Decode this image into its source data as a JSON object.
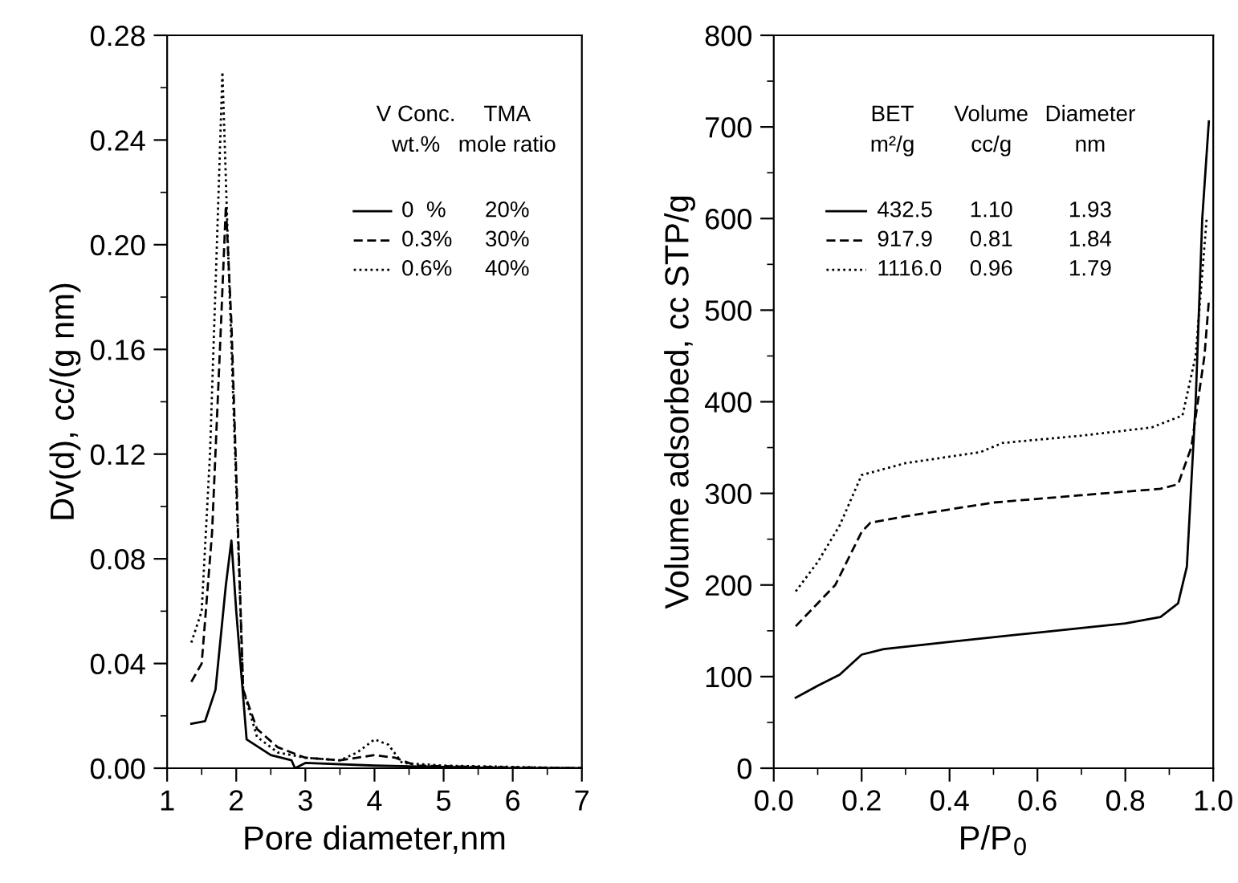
{
  "chart_data": [
    {
      "type": "line",
      "xlabel": "Pore diameter,nm",
      "ylabel": "Dv(d), cc/(g nm)",
      "xlim": [
        1,
        7
      ],
      "xticks": [
        1,
        2,
        3,
        4,
        5,
        6,
        7
      ],
      "ylim": [
        0,
        0.28
      ],
      "yticks": [
        {
          "value": 0,
          "label": "0.00"
        },
        0.04,
        0.08,
        0.12,
        0.16,
        {
          "value": 0.2,
          "label": "0.20"
        },
        0.24,
        0.28
      ],
      "grid": false,
      "legend": "top right",
      "annotations": [
        "V Conc.\nwt.%",
        "TMA\nmole ratio",
        "20%",
        "30%",
        "40%"
      ],
      "series": [
        {
          "name": "0  %",
          "color": "#000000",
          "line_style": "solid",
          "x": [
            1.35,
            1.55,
            1.7,
            1.85,
            1.93,
            2.0,
            2.15,
            2.5,
            2.8,
            2.85,
            3.0,
            4.0,
            5.0,
            6.0,
            7.0
          ],
          "values": [
            0.017,
            0.018,
            0.03,
            0.07,
            0.087,
            0.06,
            0.011,
            0.005,
            0.003,
            0.0,
            0.002,
            0.001,
            0.0005,
            0.0,
            0.0
          ]
        },
        {
          "name": "0.3%",
          "color": "#000000",
          "line_style": "dashed",
          "x": [
            1.35,
            1.5,
            1.65,
            1.78,
            1.85,
            1.93,
            2.1,
            2.3,
            2.6,
            3.0,
            3.5,
            4.0,
            4.3,
            4.6,
            5.5,
            7.0
          ],
          "values": [
            0.033,
            0.04,
            0.09,
            0.17,
            0.215,
            0.17,
            0.03,
            0.015,
            0.008,
            0.004,
            0.003,
            0.005,
            0.004,
            0.001,
            0.0005,
            0.0
          ]
        },
        {
          "name": "0.6%",
          "color": "#000000",
          "line_style": "dotted",
          "x": [
            1.35,
            1.5,
            1.62,
            1.72,
            1.8,
            1.88,
            2.1,
            2.3,
            2.6,
            3.0,
            3.5,
            3.75,
            4.0,
            4.2,
            4.4,
            5.0,
            6.0,
            7.0
          ],
          "values": [
            0.048,
            0.06,
            0.12,
            0.2,
            0.266,
            0.2,
            0.03,
            0.012,
            0.006,
            0.004,
            0.003,
            0.006,
            0.011,
            0.009,
            0.002,
            0.001,
            0.0005,
            0.0
          ]
        }
      ]
    },
    {
      "type": "line",
      "xlabel": "P/P$_{0}$",
      "ylabel": "Volume adsorbed, cc STP/g",
      "xlim": [
        0,
        1
      ],
      "xticks": [
        {
          "value": 0,
          "label": "0.0"
        },
        0.2,
        0.4,
        0.6,
        0.8,
        {
          "value": 1,
          "label": "1.0"
        }
      ],
      "ylim": [
        0,
        800
      ],
      "yticks": [
        0,
        100,
        200,
        300,
        400,
        500,
        600,
        700,
        800
      ],
      "grid": false,
      "legend": "top",
      "annotations": [
        "BET\nm²/g",
        "Volume\ncc/g",
        "Diameter\nnm",
        "1.10",
        "1.93",
        "0.81",
        "1.84",
        "0.96",
        "1.79"
      ],
      "series": [
        {
          "name": "432.5",
          "color": "#000000",
          "line_style": "solid",
          "x": [
            0.05,
            0.1,
            0.15,
            0.2,
            0.25,
            0.4,
            0.6,
            0.8,
            0.88,
            0.92,
            0.94,
            0.96,
            0.975,
            0.99
          ],
          "values": [
            77,
            90,
            102,
            124,
            130,
            138,
            148,
            158,
            165,
            180,
            220,
            400,
            600,
            706
          ]
        },
        {
          "name": "917.9",
          "color": "#000000",
          "line_style": "dashed",
          "x": [
            0.05,
            0.14,
            0.2,
            0.22,
            0.3,
            0.5,
            0.7,
            0.88,
            0.92,
            0.95,
            0.98,
            0.99
          ],
          "values": [
            155,
            200,
            258,
            268,
            275,
            290,
            298,
            305,
            310,
            350,
            450,
            510
          ]
        },
        {
          "name": "1116.0",
          "color": "#000000",
          "line_style": "dotted",
          "x": [
            0.05,
            0.1,
            0.15,
            0.2,
            0.3,
            0.47,
            0.52,
            0.7,
            0.86,
            0.93,
            0.96,
            0.985
          ],
          "values": [
            193,
            225,
            265,
            320,
            333,
            345,
            355,
            363,
            372,
            385,
            450,
            600
          ]
        }
      ]
    }
  ]
}
